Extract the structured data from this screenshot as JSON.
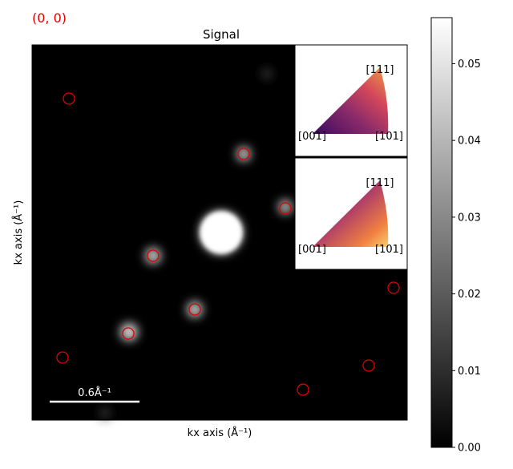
{
  "corner_label": "(0, 0)",
  "chart_data": {
    "type": "image",
    "title": "Signal",
    "xlabel": "kx axis (Å⁻¹)",
    "ylabel": "kx axis (Å⁻¹)",
    "scale_bar_label": "0.6Å⁻¹",
    "colorbar": {
      "clim": [
        0,
        0.056
      ],
      "colors": [
        "#000000",
        "#ffffff"
      ],
      "ticks": [
        {
          "value": 0,
          "label": "0.00"
        },
        {
          "value": 0.01,
          "label": "0.01"
        },
        {
          "value": 0.02,
          "label": "0.02"
        },
        {
          "value": 0.03,
          "label": "0.03"
        },
        {
          "value": 0.04,
          "label": "0.04"
        },
        {
          "value": 0.05,
          "label": "0.05"
        }
      ]
    },
    "insets": [
      {
        "labels": [
          "[111]",
          "[001]",
          "[101]"
        ]
      },
      {
        "labels": [
          "[111]",
          "[001]",
          "[101]"
        ]
      }
    ]
  }
}
